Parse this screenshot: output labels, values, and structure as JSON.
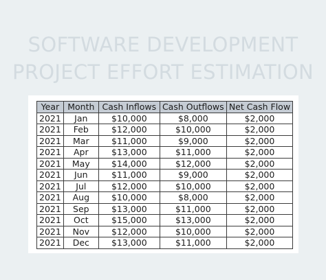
{
  "title": {
    "line1": "SOFTWARE DEVELOPMENT",
    "line2": "PROJECT EFFORT ESTIMATION"
  },
  "table": {
    "headers": [
      "Year",
      "Month",
      "Cash Inflows",
      "Cash Outflows",
      "Net Cash Flow"
    ],
    "rows": [
      [
        "2021",
        "Jan",
        "$10,000",
        "$8,000",
        "$2,000"
      ],
      [
        "2021",
        "Feb",
        "$12,000",
        "$10,000",
        "$2,000"
      ],
      [
        "2021",
        "Mar",
        "$11,000",
        "$9,000",
        "$2,000"
      ],
      [
        "2021",
        "Apr",
        "$13,000",
        "$11,000",
        "$2,000"
      ],
      [
        "2021",
        "May",
        "$14,000",
        "$12,000",
        "$2,000"
      ],
      [
        "2021",
        "Jun",
        "$11,000",
        "$9,000",
        "$2,000"
      ],
      [
        "2021",
        "Jul",
        "$12,000",
        "$10,000",
        "$2,000"
      ],
      [
        "2021",
        "Aug",
        "$10,000",
        "$8,000",
        "$2,000"
      ],
      [
        "2021",
        "Sep",
        "$13,000",
        "$11,000",
        "$2,000"
      ],
      [
        "2021",
        "Oct",
        "$15,000",
        "$13,000",
        "$2,000"
      ],
      [
        "2021",
        "Nov",
        "$12,000",
        "$10,000",
        "$2,000"
      ],
      [
        "2021",
        "Dec",
        "$13,000",
        "$11,000",
        "$2,000"
      ]
    ]
  }
}
